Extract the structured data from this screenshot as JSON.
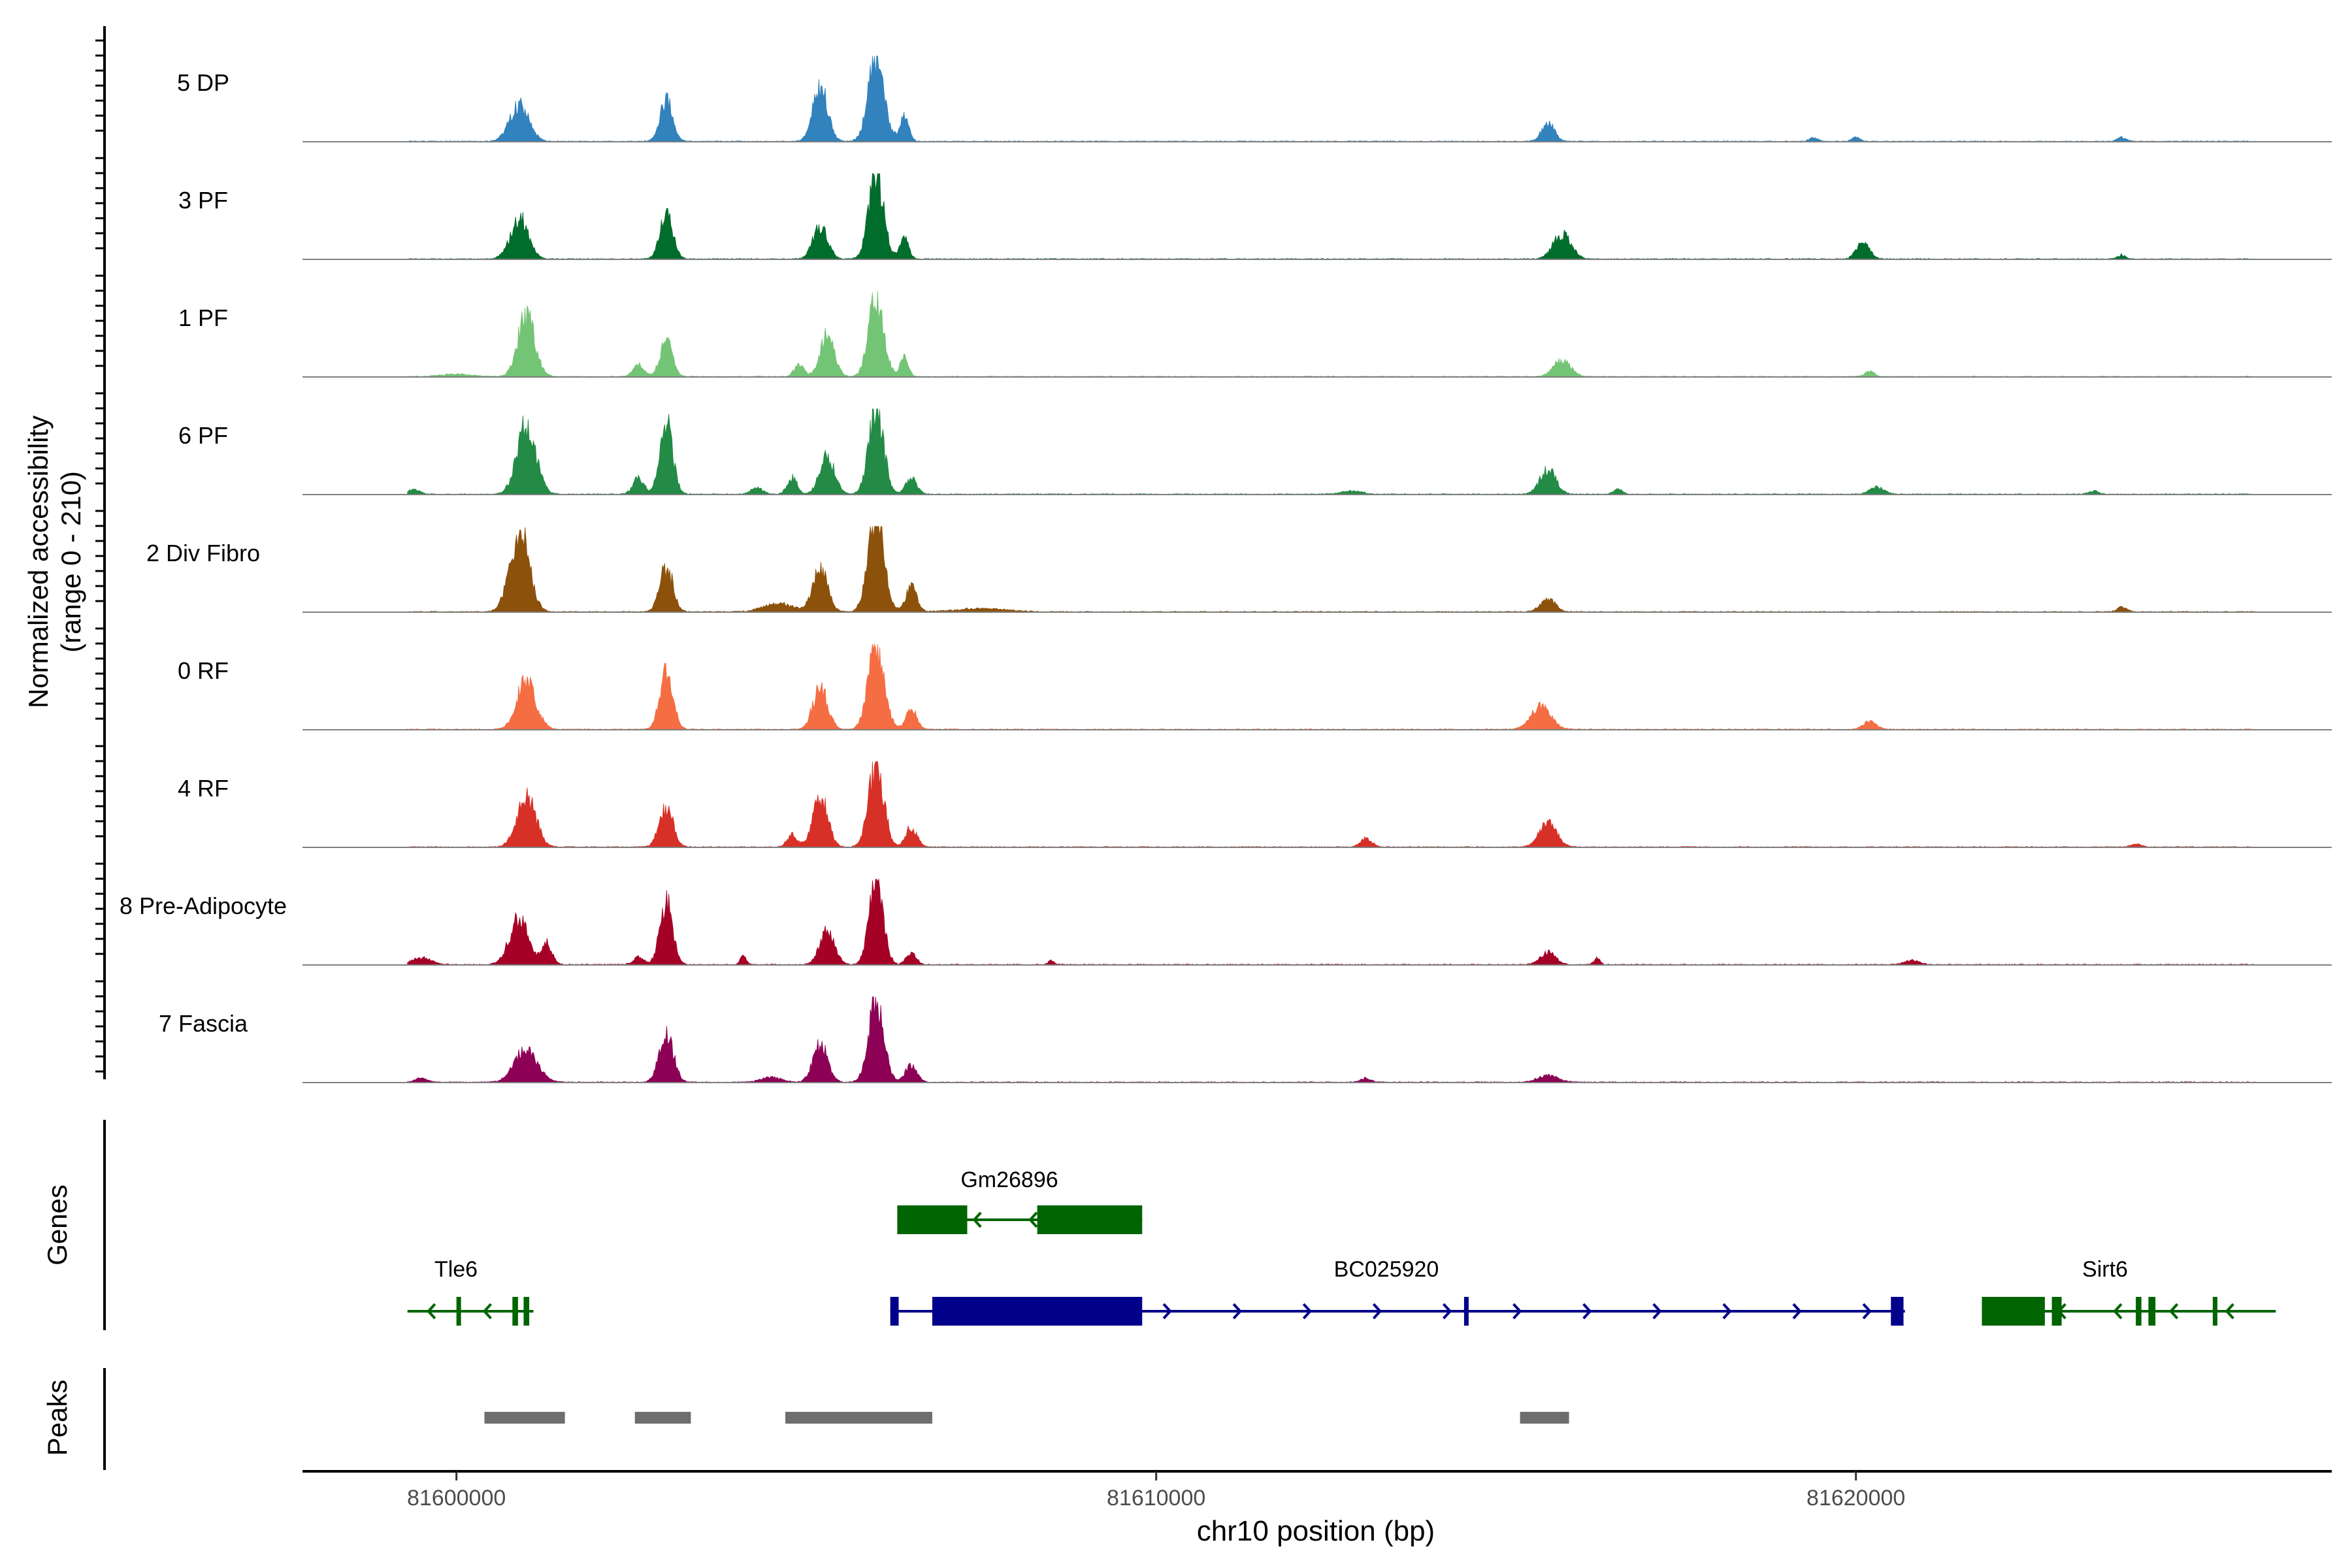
{
  "chart_data": {
    "type": "area",
    "chromosome": "chr10",
    "xlabel": "chr10 position (bp)",
    "ylabel": [
      "Normalized accessibility",
      "(range 0 - 210)"
    ],
    "y_range": [
      0,
      210
    ],
    "xlim": [
      81597800,
      81626800
    ],
    "x_ticks": [
      81600000,
      81610000,
      81620000
    ],
    "x_tick_labels": [
      "81600000",
      "81610000",
      "81620000"
    ],
    "tracks": [
      {
        "name": "5 DP",
        "color": "#3182BD",
        "peaks": [
          [
            81600900,
            0.45,
            190
          ],
          [
            81603000,
            0.5,
            130
          ],
          [
            81605200,
            0.65,
            150
          ],
          [
            81606000,
            1.0,
            160
          ],
          [
            81606400,
            0.3,
            90
          ],
          [
            81615600,
            0.22,
            130
          ],
          [
            81619400,
            0.05,
            80
          ],
          [
            81620000,
            0.05,
            80
          ],
          [
            81623800,
            0.05,
            90
          ]
        ]
      },
      {
        "name": "3 PF",
        "color": "#006D2C",
        "peaks": [
          [
            81600900,
            0.5,
            180
          ],
          [
            81603000,
            0.55,
            130
          ],
          [
            81605200,
            0.38,
            150
          ],
          [
            81606000,
            1.0,
            150
          ],
          [
            81606400,
            0.25,
            90
          ],
          [
            81615800,
            0.3,
            180
          ],
          [
            81620100,
            0.2,
            130
          ],
          [
            81623800,
            0.05,
            80
          ]
        ]
      },
      {
        "name": "1 PF",
        "color": "#74C476",
        "peaks": [
          [
            81600000,
            0.03,
            300
          ],
          [
            81601000,
            0.75,
            170
          ],
          [
            81602600,
            0.15,
            110
          ],
          [
            81603000,
            0.45,
            120
          ],
          [
            81604900,
            0.15,
            100
          ],
          [
            81605300,
            0.5,
            140
          ],
          [
            81606000,
            0.95,
            150
          ],
          [
            81606400,
            0.25,
            80
          ],
          [
            81615800,
            0.2,
            170
          ],
          [
            81620200,
            0.06,
            100
          ]
        ]
      },
      {
        "name": "6 PF",
        "color": "#238B45",
        "peaks": [
          [
            81599400,
            0.06,
            120
          ],
          [
            81601000,
            0.85,
            190
          ],
          [
            81602600,
            0.2,
            110
          ],
          [
            81603000,
            0.85,
            130
          ],
          [
            81604300,
            0.08,
            120
          ],
          [
            81605300,
            0.45,
            150
          ],
          [
            81604800,
            0.2,
            100
          ],
          [
            81606000,
            1.0,
            150
          ],
          [
            81606500,
            0.2,
            110
          ],
          [
            81615600,
            0.3,
            160
          ],
          [
            81616600,
            0.06,
            90
          ],
          [
            81612800,
            0.04,
            200
          ],
          [
            81620300,
            0.08,
            150
          ],
          [
            81623400,
            0.04,
            100
          ]
        ]
      },
      {
        "name": "2 Div Fibro",
        "color": "#8C510A",
        "peaks": [
          [
            81600900,
            1.0,
            190
          ],
          [
            81603000,
            0.55,
            130
          ],
          [
            81605200,
            0.5,
            150
          ],
          [
            81604600,
            0.1,
            300
          ],
          [
            81606000,
            1.15,
            160
          ],
          [
            81606500,
            0.3,
            110
          ],
          [
            81607500,
            0.04,
            500
          ],
          [
            81615600,
            0.15,
            150
          ],
          [
            81623800,
            0.06,
            90
          ]
        ]
      },
      {
        "name": "0 RF",
        "color": "#F46D43",
        "peaks": [
          [
            81601000,
            0.6,
            190
          ],
          [
            81603000,
            0.7,
            130
          ],
          [
            81605200,
            0.5,
            150
          ],
          [
            81606000,
            1.0,
            160
          ],
          [
            81606500,
            0.25,
            110
          ],
          [
            81615500,
            0.28,
            200
          ],
          [
            81620200,
            0.1,
            130
          ]
        ]
      },
      {
        "name": "4 RF",
        "color": "#D73027",
        "peaks": [
          [
            81601000,
            0.6,
            190
          ],
          [
            81603000,
            0.48,
            140
          ],
          [
            81605200,
            0.6,
            150
          ],
          [
            81604800,
            0.15,
            100
          ],
          [
            81606000,
            1.0,
            150
          ],
          [
            81606500,
            0.25,
            110
          ],
          [
            81613000,
            0.1,
            120
          ],
          [
            81615600,
            0.28,
            180
          ],
          [
            81624000,
            0.04,
            100
          ]
        ]
      },
      {
        "name": "8 Pre-Adipocyte",
        "color": "#A50026",
        "peaks": [
          [
            81599500,
            0.08,
            200
          ],
          [
            81600900,
            0.55,
            200
          ],
          [
            81601300,
            0.25,
            100
          ],
          [
            81602600,
            0.1,
            100
          ],
          [
            81603000,
            0.75,
            130
          ],
          [
            81604100,
            0.1,
            60
          ],
          [
            81605300,
            0.4,
            150
          ],
          [
            81606000,
            1.0,
            140
          ],
          [
            81606500,
            0.15,
            100
          ],
          [
            81608500,
            0.05,
            60
          ],
          [
            81615600,
            0.15,
            150
          ],
          [
            81616300,
            0.08,
            60
          ],
          [
            81620800,
            0.05,
            150
          ]
        ]
      },
      {
        "name": "7 Fascia",
        "color": "#8C0055",
        "peaks": [
          [
            81599500,
            0.05,
            120
          ],
          [
            81601000,
            0.4,
            230
          ],
          [
            81603000,
            0.6,
            140
          ],
          [
            81604500,
            0.06,
            200
          ],
          [
            81605200,
            0.45,
            150
          ],
          [
            81606000,
            1.0,
            150
          ],
          [
            81606500,
            0.2,
            120
          ],
          [
            81613000,
            0.05,
            100
          ],
          [
            81615600,
            0.08,
            200
          ]
        ]
      }
    ],
    "genes": [
      {
        "name": "Gm26896",
        "strand": "-",
        "start": 81606300,
        "end": 81609800,
        "exons": [
          [
            81606300,
            81607300
          ],
          [
            81608300,
            81609800
          ]
        ],
        "color": "#006400"
      },
      {
        "name": "Tle6",
        "strand": "-",
        "start": 81599300,
        "end": 81601100,
        "exons": [
          [
            81600000,
            81600060
          ],
          [
            81600800,
            81600880
          ],
          [
            81600960,
            81601040
          ]
        ],
        "color": "#006400"
      },
      {
        "name": "BC025920",
        "strand": "+",
        "start": 81606200,
        "end": 81620700,
        "exons": [
          [
            81606200,
            81606320
          ],
          [
            81606800,
            81609800
          ],
          [
            81614400,
            81614440
          ],
          [
            81620500,
            81620680
          ]
        ],
        "color": "#00008B"
      },
      {
        "name": "Sirt6",
        "strand": "-",
        "start": 81621800,
        "end": 81626000,
        "exons": [
          [
            81621800,
            81622700
          ],
          [
            81622800,
            81622940
          ],
          [
            81624000,
            81624080
          ],
          [
            81624180,
            81624280
          ],
          [
            81625100,
            81625160
          ]
        ],
        "color": "#006400"
      }
    ],
    "peaks_track": [
      [
        81600400,
        81601550
      ],
      [
        81602550,
        81603350
      ],
      [
        81604700,
        81606800
      ],
      [
        81615200,
        81615900
      ]
    ],
    "side_labels": {
      "genes": "Genes",
      "peaks": "Peaks"
    }
  }
}
